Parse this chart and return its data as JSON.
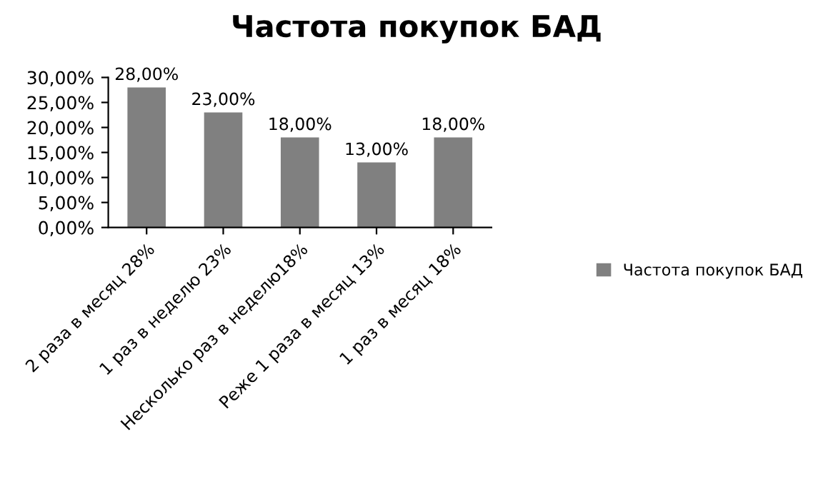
{
  "chart_data": {
    "type": "bar",
    "title": "Частота покупок БАД",
    "categories": [
      "2 раза в месяц 28%",
      "1 раз в неделю 23%",
      "Несколько раз в неделю18%",
      "Реже 1 раза в месяц 13%",
      "1 раз в месяц 18%"
    ],
    "series": [
      {
        "name": "Частота покупок БАД",
        "color": "#808080",
        "values": [
          28,
          23,
          18,
          13,
          18
        ],
        "value_labels": [
          "28,00%",
          "23,00%",
          "18,00%",
          "13,00%",
          "18,00%"
        ]
      }
    ],
    "ylim": [
      0,
      30
    ],
    "yticks": [
      {
        "value": 0,
        "label": "0,00%"
      },
      {
        "value": 5,
        "label": "5,00%"
      },
      {
        "value": 10,
        "label": "10,00%"
      },
      {
        "value": 15,
        "label": "15,00%"
      },
      {
        "value": 20,
        "label": "20,00%"
      },
      {
        "value": 25,
        "label": "25,00%"
      },
      {
        "value": 30,
        "label": "30,00%"
      }
    ],
    "legend": "right"
  }
}
